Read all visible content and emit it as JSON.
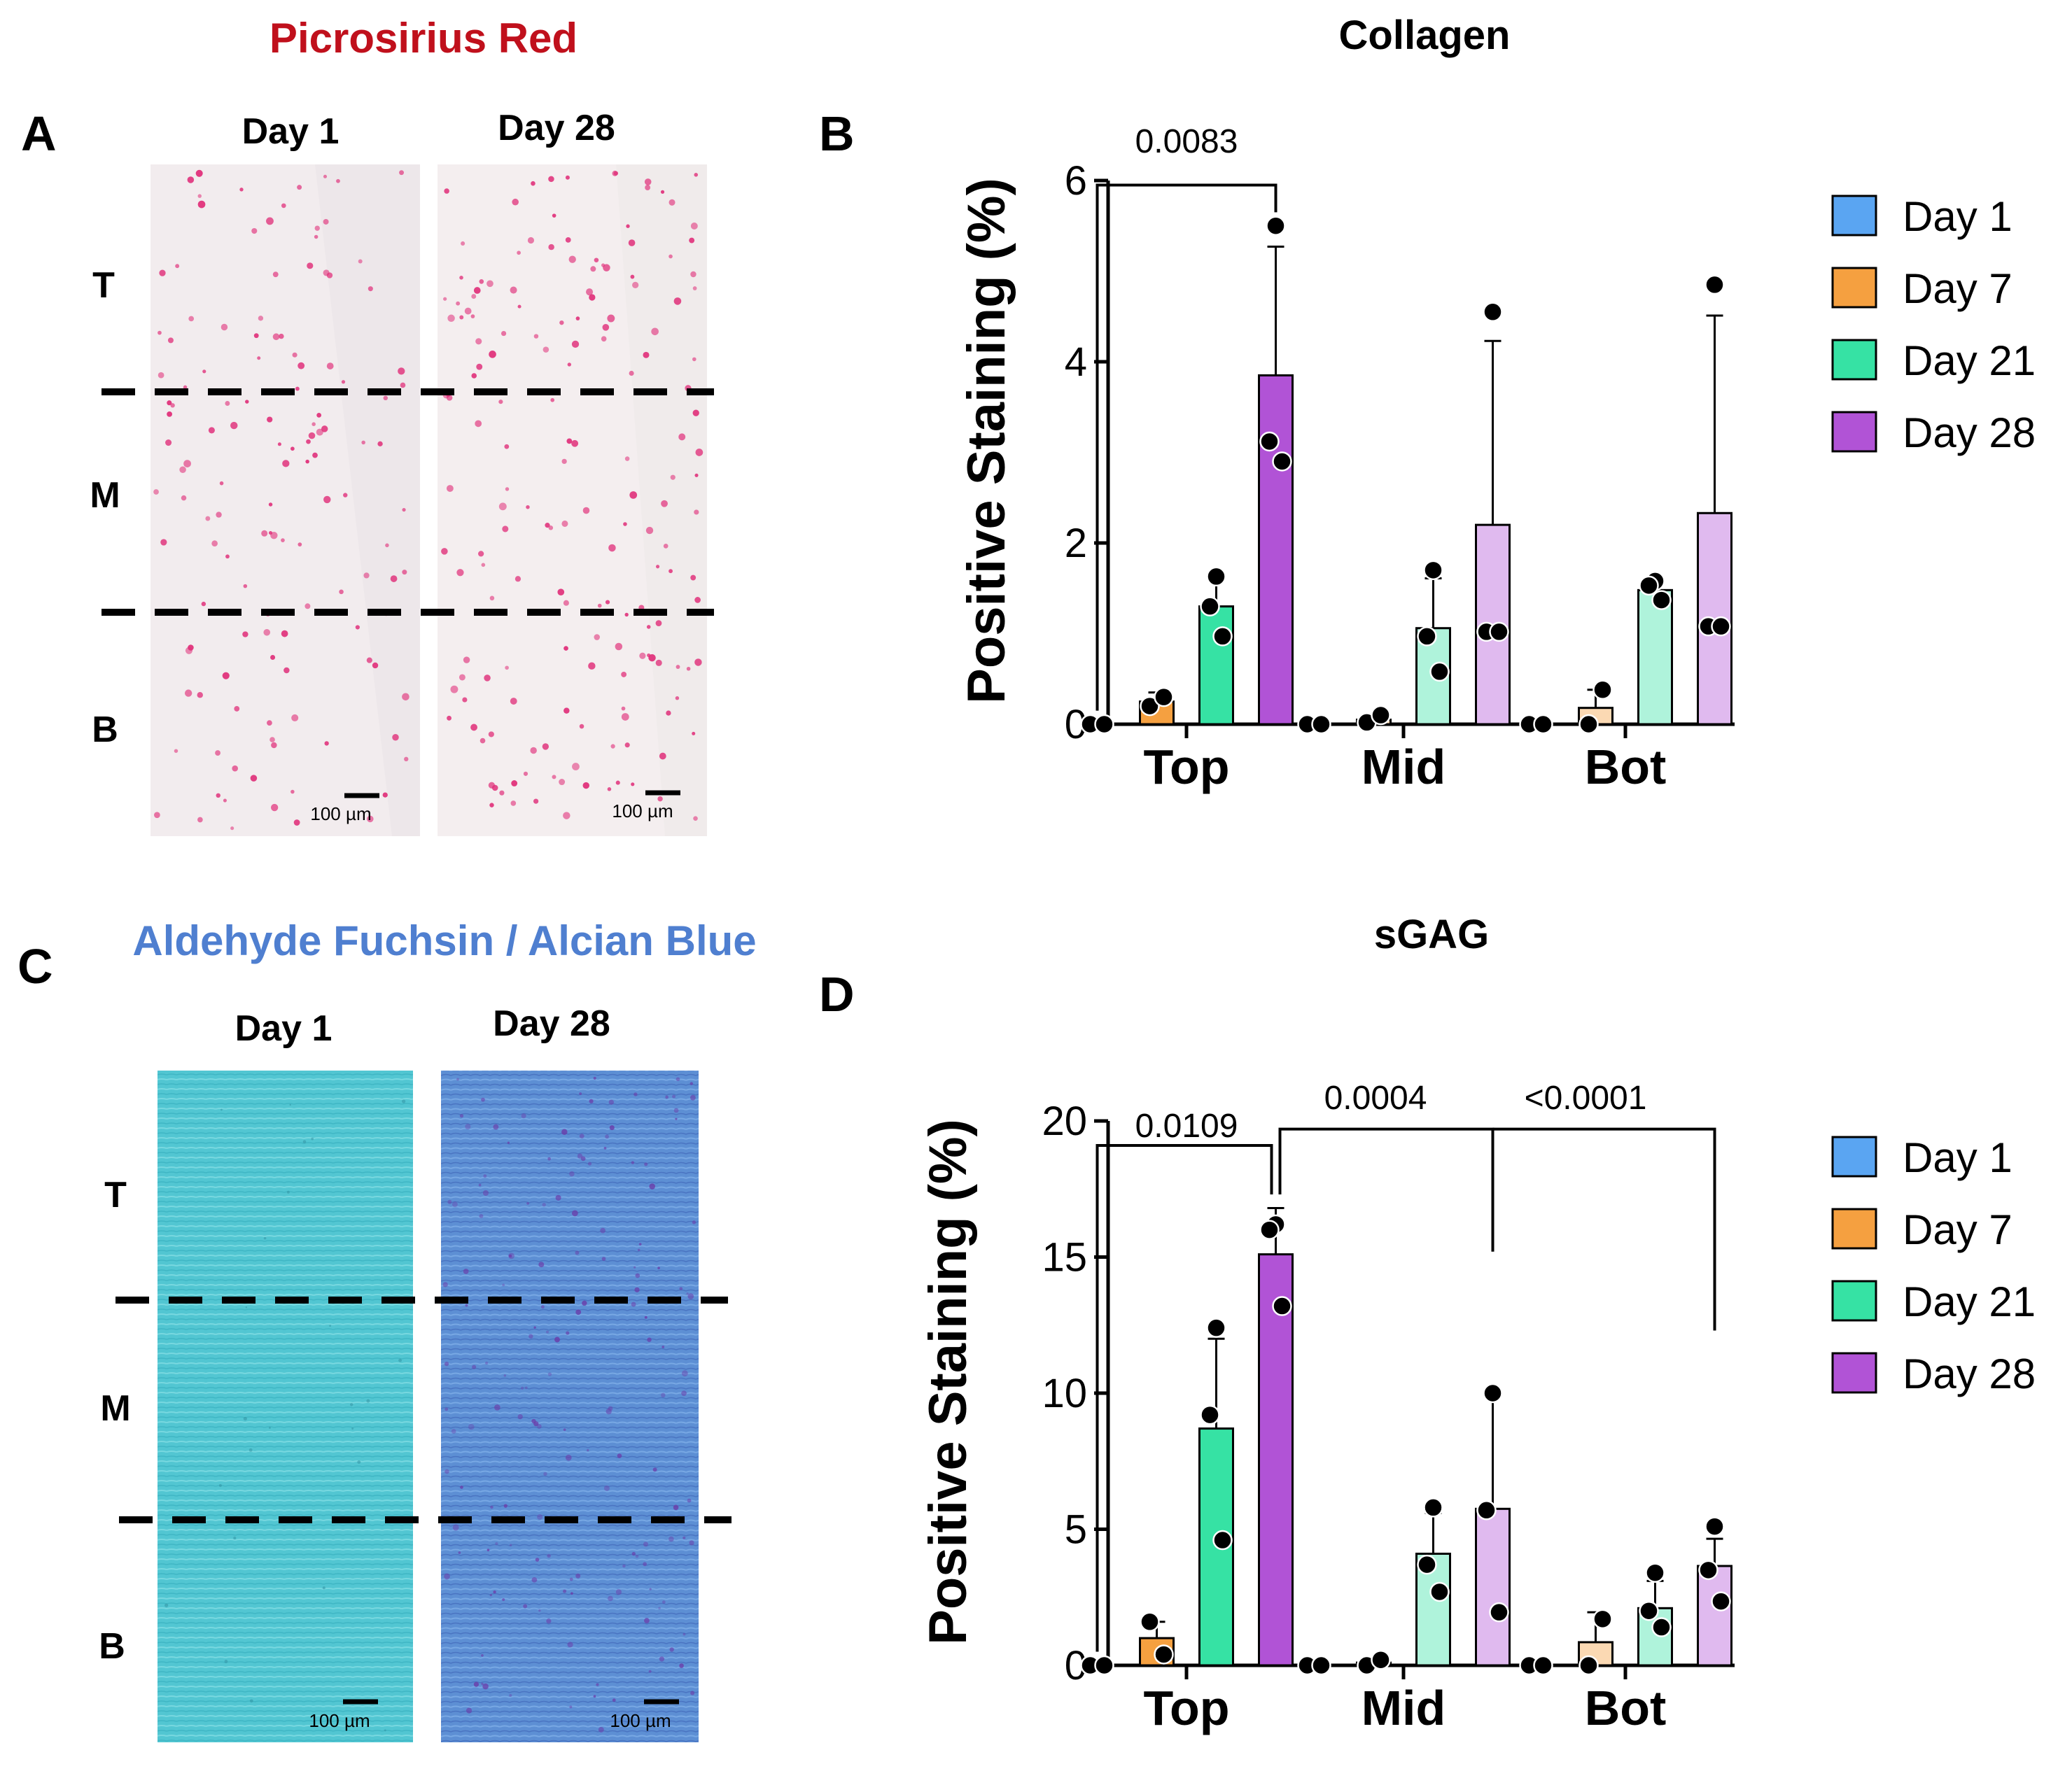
{
  "figure": {
    "panel_labels": {
      "A": "A",
      "B": "B",
      "C": "C",
      "D": "D"
    },
    "panel_a": {
      "title": "Picrosirius Red",
      "title_color": "#c0101c",
      "columns": [
        "Day 1",
        "Day 28"
      ],
      "zones": [
        "T",
        "M",
        "B"
      ],
      "scale_bar": "100 µm",
      "tissue_colors": {
        "background": "#f2ecee",
        "cells": "#e0307a"
      }
    },
    "panel_c": {
      "title": "Aldehyde Fuchsin / Alcian Blue",
      "title_color": "#4f7fd0",
      "columns": [
        "Day 1",
        "Day 28"
      ],
      "zones": [
        "T",
        "M",
        "B"
      ],
      "scale_bar": "100 µm",
      "tissue_colors": {
        "day1": "#52c6d2",
        "day28": "#5d8fd4",
        "spots": "#6b3aa8"
      }
    },
    "legend": [
      {
        "name": "Day 1",
        "color": "#5aa5f2"
      },
      {
        "name": "Day 7",
        "color": "#f5a040"
      },
      {
        "name": "Day 21",
        "color": "#36e2a4"
      },
      {
        "name": "Day 28",
        "color": "#b153d6"
      }
    ]
  },
  "chart_data": [
    {
      "panel": "B",
      "type": "bar",
      "title": "Collagen",
      "xlabel": "",
      "ylabel": "Positive Staining (%)",
      "categories": [
        "Top",
        "Mid",
        "Bot"
      ],
      "ylim": [
        0,
        6
      ],
      "yticks": [
        0,
        2,
        4,
        6
      ],
      "grid": false,
      "legend_position": "right",
      "series": [
        {
          "name": "Day 1",
          "values": [
            0.0,
            0.0,
            0.0
          ],
          "sd": [
            0,
            0,
            0
          ],
          "points": [
            [
              0,
              0
            ],
            [
              0,
              0
            ],
            [
              0,
              0
            ]
          ]
        },
        {
          "name": "Day 7",
          "values": [
            0.25,
            0.05,
            0.18
          ],
          "sd": [
            0.1,
            0.06,
            0.2
          ],
          "points": [
            [
              0.2,
              0.3
            ],
            [
              0.02,
              0.1
            ],
            [
              0,
              0.38
            ]
          ]
        },
        {
          "name": "Day 21",
          "values": [
            1.3,
            1.06,
            1.48
          ],
          "sd": [
            0.3,
            0.55,
            0.1
          ],
          "points": [
            [
              1.63,
              1.3,
              0.97
            ],
            [
              1.7,
              0.97,
              0.58
            ],
            [
              1.58,
              1.53,
              1.37
            ]
          ]
        },
        {
          "name": "Day 28",
          "values": [
            3.85,
            2.2,
            2.33
          ],
          "sd": [
            1.42,
            2.03,
            2.18
          ],
          "points": [
            [
              5.5,
              3.12,
              2.9
            ],
            [
              4.55,
              1.02,
              1.02
            ],
            [
              4.85,
              1.08,
              1.08
            ]
          ]
        }
      ],
      "annotations": [
        {
          "text": "0.0083",
          "from": "Top Day 1",
          "to": "Top Day 28"
        }
      ]
    },
    {
      "panel": "D",
      "type": "bar",
      "title": "sGAG",
      "xlabel": "",
      "ylabel": "Positive Staining (%)",
      "categories": [
        "Top",
        "Mid",
        "Bot"
      ],
      "ylim": [
        0,
        20
      ],
      "yticks": [
        0,
        5,
        10,
        15,
        20
      ],
      "grid": false,
      "legend_position": "right",
      "series": [
        {
          "name": "Day 1",
          "values": [
            0.0,
            0.0,
            0.0
          ],
          "sd": [
            0,
            0,
            0
          ],
          "points": [
            [
              0,
              0
            ],
            [
              0,
              0
            ],
            [
              0,
              0
            ]
          ]
        },
        {
          "name": "Day 7",
          "values": [
            1.0,
            0.1,
            0.85
          ],
          "sd": [
            0.6,
            0.1,
            1.1
          ],
          "points": [
            [
              1.6,
              0.4
            ],
            [
              0,
              0.2
            ],
            [
              0,
              1.7
            ]
          ]
        },
        {
          "name": "Day 21",
          "values": [
            8.7,
            4.1,
            2.1
          ],
          "sd": [
            3.3,
            1.5,
            1.0
          ],
          "points": [
            [
              12.4,
              9.2,
              4.6
            ],
            [
              5.8,
              3.7,
              2.7
            ],
            [
              3.4,
              2.0,
              1.4
            ]
          ]
        },
        {
          "name": "Day 28",
          "values": [
            15.1,
            5.75,
            3.65
          ],
          "sd": [
            1.7,
            4.25,
            1.0
          ],
          "points": [
            [
              16.2,
              16.0,
              13.2
            ],
            [
              10.0,
              5.7,
              1.95
            ],
            [
              5.1,
              3.5,
              2.35
            ]
          ]
        }
      ],
      "annotations": [
        {
          "text": "0.0109",
          "from": "Top Day 1",
          "to": "Top Day 28"
        },
        {
          "text": "0.0004",
          "from": "Top Day 28",
          "to": "Mid Day 28"
        },
        {
          "text": "<0.0001",
          "from": "Top Day 28",
          "to": "Bot Day 28"
        }
      ]
    }
  ]
}
